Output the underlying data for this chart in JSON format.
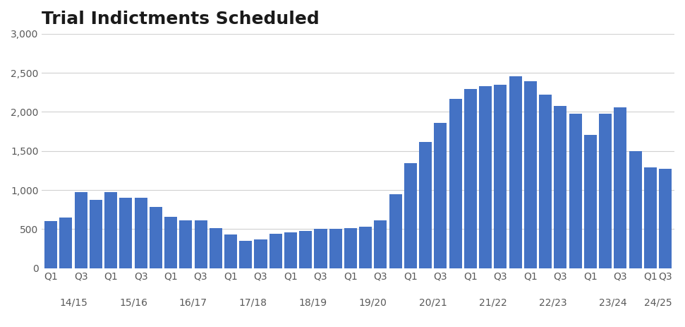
{
  "title": "Trial Indictments Scheduled",
  "bar_color": "#4472C4",
  "background_color": "#ffffff",
  "values": [
    600,
    650,
    970,
    870,
    970,
    900,
    900,
    780,
    660,
    610,
    610,
    510,
    430,
    350,
    370,
    440,
    460,
    480,
    500,
    500,
    510,
    530,
    610,
    950,
    1340,
    1620,
    1860,
    2170,
    2290,
    2330,
    2350,
    2460,
    2390,
    2220,
    2080,
    1980,
    1710,
    1980,
    2060,
    1500,
    1290,
    1270
  ],
  "quarter_tick_labels": [
    "Q1",
    "",
    "Q3",
    "",
    "Q1",
    "",
    "Q3",
    "",
    "Q1",
    "",
    "Q3",
    "",
    "Q1",
    "",
    "Q3",
    "",
    "Q1",
    "",
    "Q3",
    "",
    "Q1",
    "",
    "Q3",
    "",
    "Q1",
    "",
    "Q3",
    "",
    "Q1",
    "",
    "Q3",
    "",
    "Q1",
    "",
    "Q3",
    "",
    "Q1",
    "",
    "Q3",
    "",
    "Q1",
    "Q3"
  ],
  "year_labels": [
    "14/15",
    "15/16",
    "16/17",
    "17/18",
    "18/19",
    "19/20",
    "20/21",
    "21/22",
    "22/23",
    "23/24",
    "24/25"
  ],
  "year_bar_counts": [
    4,
    4,
    4,
    4,
    4,
    4,
    4,
    4,
    4,
    4,
    2
  ],
  "ylim": [
    0,
    3000
  ],
  "yticks": [
    0,
    500,
    1000,
    1500,
    2000,
    2500,
    3000
  ],
  "title_fontsize": 18,
  "tick_label_fontsize": 10,
  "year_label_fontsize": 10
}
